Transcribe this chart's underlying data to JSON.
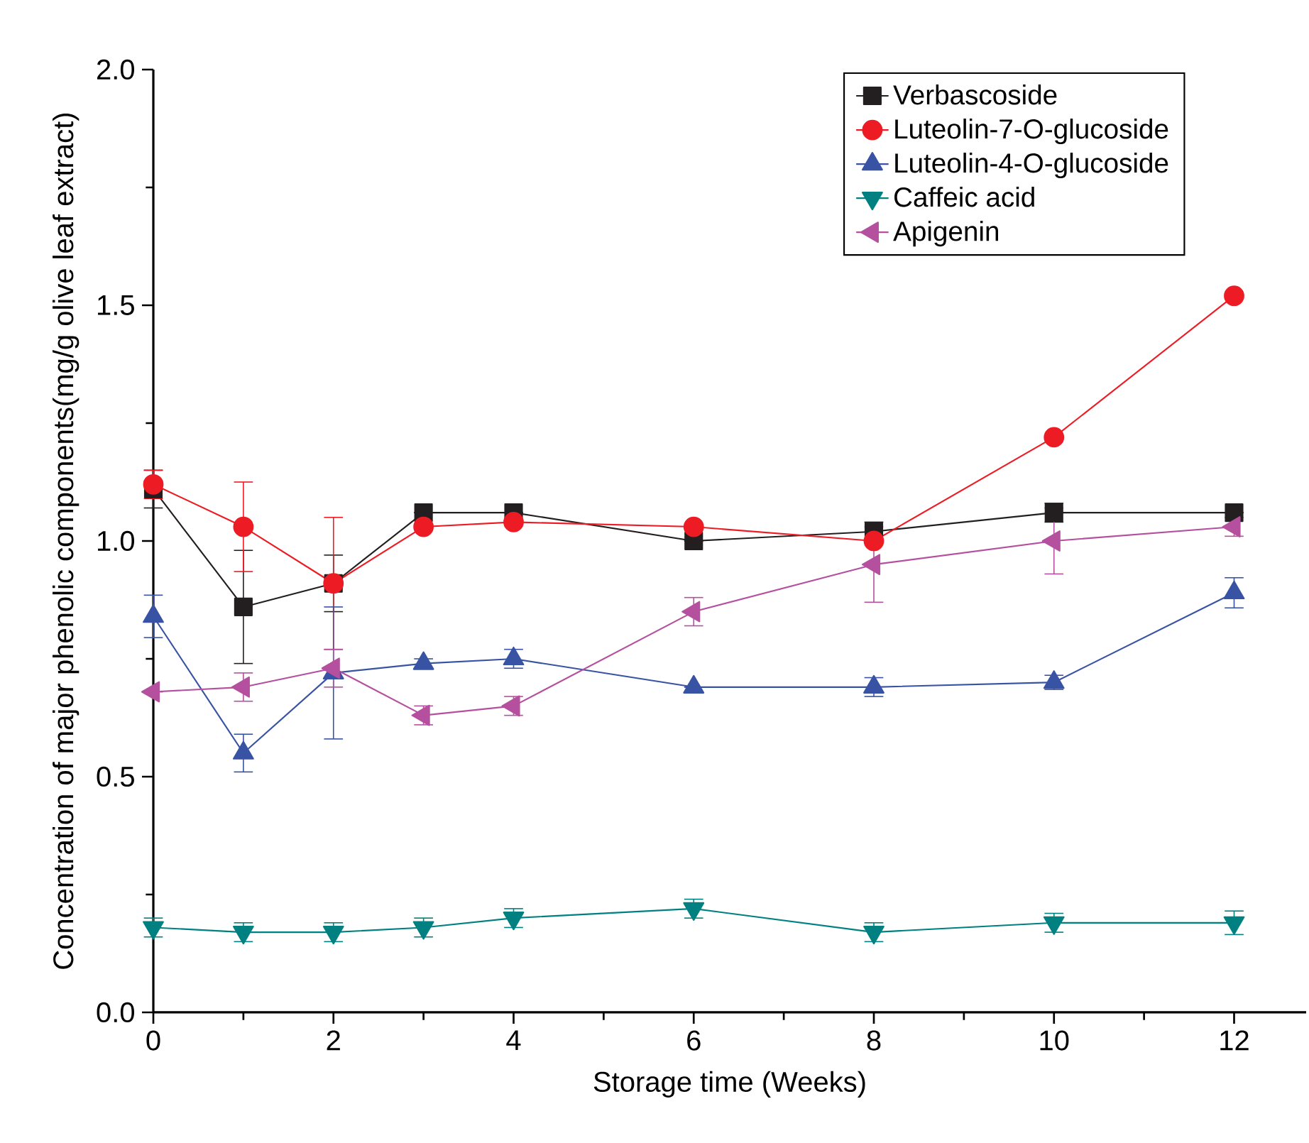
{
  "chart_data": {
    "type": "line",
    "xlabel": "Storage time (Weeks)",
    "ylabel": "Concentration of major phenolic components(mg/g olive leaf extract)",
    "x": [
      0,
      1,
      2,
      3,
      4,
      6,
      8,
      10,
      12
    ],
    "xlim": [
      0,
      12.8
    ],
    "ylim": [
      0,
      2
    ],
    "xticks": [
      0,
      2,
      4,
      6,
      8,
      10,
      12
    ],
    "yticks": [
      {
        "value": 0,
        "label": "0.0"
      },
      {
        "value": 0.5,
        "label": "0.5"
      },
      {
        "value": 1,
        "label": "1.0"
      },
      {
        "value": 1.5,
        "label": "1.5"
      },
      {
        "value": 2,
        "label": "2.0"
      }
    ],
    "legend": "top right",
    "line_style": "solid",
    "series": [
      {
        "name": "Verbascoside",
        "color": "#231f20",
        "marker": "square",
        "values": [
          1.11,
          0.86,
          0.91,
          1.06,
          1.06,
          1.0,
          1.02,
          1.06,
          1.06
        ],
        "errors": [
          0.04,
          0.12,
          0.06,
          null,
          null,
          null,
          0.02,
          0.02,
          null
        ]
      },
      {
        "name": "Luteolin-7-O-glucoside",
        "color": "#ed1c24",
        "marker": "circle",
        "values": [
          1.12,
          1.03,
          0.91,
          1.03,
          1.04,
          1.03,
          1.0,
          1.22,
          1.52
        ],
        "errors": [
          0.03,
          0.095,
          0.14,
          null,
          null,
          null,
          null,
          null,
          null
        ]
      },
      {
        "name": "Luteolin-4-O-glucoside",
        "color": "#3953a4",
        "marker": "triangle",
        "values": [
          0.84,
          0.55,
          0.72,
          0.74,
          0.75,
          0.69,
          0.69,
          0.7,
          0.89
        ],
        "errors": [
          0.045,
          0.04,
          0.14,
          0.01,
          0.02,
          null,
          0.02,
          0.015,
          0.032
        ]
      },
      {
        "name": "Caffeic acid",
        "color": "#008080",
        "marker": "triangle-down",
        "values": [
          0.18,
          0.17,
          0.17,
          0.18,
          0.2,
          0.22,
          0.17,
          0.19,
          0.19
        ],
        "errors": [
          0.02,
          0.02,
          0.02,
          0.02,
          0.02,
          0.02,
          0.02,
          0.02,
          0.025
        ]
      },
      {
        "name": "Apigenin",
        "color": "#b5509f",
        "marker": "triangle-left",
        "values": [
          0.68,
          0.69,
          0.73,
          0.63,
          0.65,
          0.85,
          0.95,
          1.0,
          1.03
        ],
        "errors": [
          null,
          0.03,
          0.04,
          0.02,
          0.02,
          0.03,
          0.08,
          0.07,
          0.02
        ]
      }
    ]
  }
}
